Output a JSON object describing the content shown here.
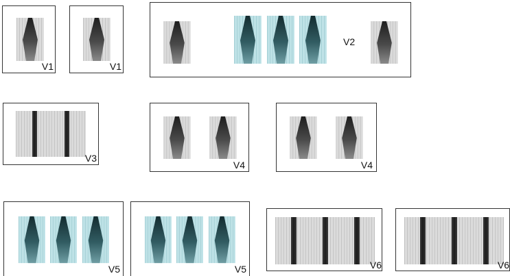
{
  "colors": {
    "gray_light": "#e9e9e9",
    "gray_stripe": "#bdbdbd",
    "gray_dark": "#2a2a2a",
    "teal_light": "#c7e6ea",
    "teal_stripe": "#9fcdd3",
    "teal_dark": "#1f4146",
    "frame_border": "#333333"
  },
  "panels": [
    {
      "id": "p1",
      "label": "V1"
    },
    {
      "id": "p2",
      "label": "V1"
    },
    {
      "id": "p3",
      "label": "V2"
    },
    {
      "id": "p4",
      "label": "V3"
    },
    {
      "id": "p5",
      "label": "V4"
    },
    {
      "id": "p6",
      "label": "V4"
    },
    {
      "id": "p7",
      "label": "V5"
    },
    {
      "id": "p8",
      "label": "V5"
    },
    {
      "id": "p9",
      "label": "V6"
    },
    {
      "id": "p10",
      "label": "V6"
    }
  ]
}
